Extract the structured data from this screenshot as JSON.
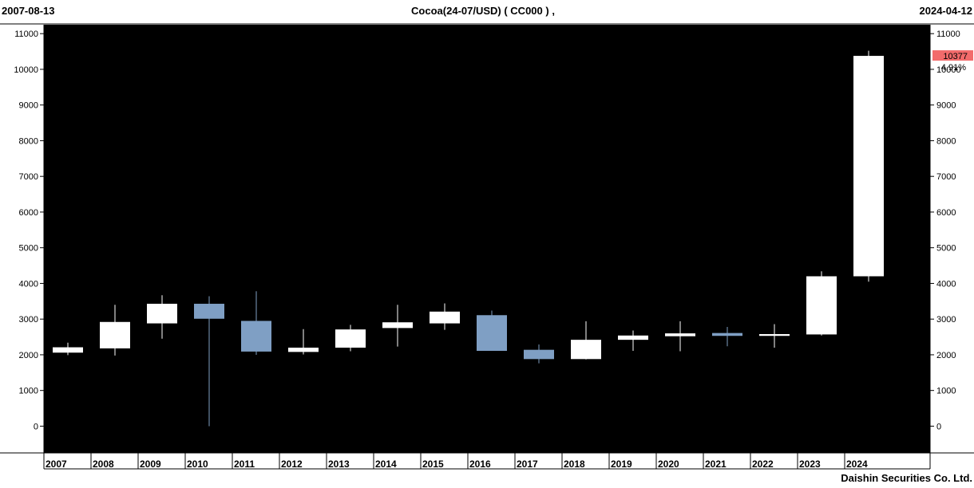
{
  "header": {
    "start_date": "2007-08-13",
    "title": "Cocoa(24-07/USD)  ( CC000 ) ,",
    "end_date": "2024-04-12"
  },
  "footer": {
    "company": "Daishin Securities Co. Ltd."
  },
  "last_price": {
    "value": "10377",
    "change": "4.91%"
  },
  "colors": {
    "background": "#000000",
    "up_candle": "#ffffff",
    "down_candle": "#7f9fc4",
    "price_badge": "#f26b6b",
    "change_text": "#e53030"
  },
  "chart_data": {
    "type": "candlestick",
    "title": "Cocoa(24-07/USD)  ( CC000 ) ,",
    "xlabel": "",
    "ylabel": "",
    "ylim": [
      -750,
      11250
    ],
    "y_ticks": [
      0,
      1000,
      2000,
      3000,
      4000,
      5000,
      6000,
      7000,
      8000,
      9000,
      10000,
      11000
    ],
    "grid": false,
    "categories": [
      "2007",
      "2008",
      "2009",
      "2010",
      "2011",
      "2012",
      "2013",
      "2014",
      "2015",
      "2016",
      "2017",
      "2018",
      "2019",
      "2020",
      "2021",
      "2022",
      "2023",
      "2024"
    ],
    "candles": [
      {
        "year": "2007",
        "open": 2060,
        "high": 2340,
        "low": 1990,
        "close": 2210
      },
      {
        "year": "2008",
        "open": 2180,
        "high": 3400,
        "low": 1980,
        "close": 2920
      },
      {
        "year": "2009",
        "open": 2880,
        "high": 3670,
        "low": 2450,
        "close": 3430
      },
      {
        "year": "2010",
        "open": 3430,
        "high": 3640,
        "low": 0,
        "close": 3010
      },
      {
        "year": "2011",
        "open": 2950,
        "high": 3780,
        "low": 2000,
        "close": 2090
      },
      {
        "year": "2012",
        "open": 2080,
        "high": 2720,
        "low": 2010,
        "close": 2200
      },
      {
        "year": "2013",
        "open": 2200,
        "high": 2840,
        "low": 2100,
        "close": 2710
      },
      {
        "year": "2014",
        "open": 2750,
        "high": 3400,
        "low": 2230,
        "close": 2910
      },
      {
        "year": "2015",
        "open": 2880,
        "high": 3440,
        "low": 2700,
        "close": 3210
      },
      {
        "year": "2016",
        "open": 3110,
        "high": 3240,
        "low": 2110,
        "close": 2110
      },
      {
        "year": "2017",
        "open": 2140,
        "high": 2290,
        "low": 1760,
        "close": 1880
      },
      {
        "year": "2018",
        "open": 1880,
        "high": 2940,
        "low": 1870,
        "close": 2420
      },
      {
        "year": "2019",
        "open": 2420,
        "high": 2680,
        "low": 2110,
        "close": 2540
      },
      {
        "year": "2020",
        "open": 2520,
        "high": 2940,
        "low": 2100,
        "close": 2600
      },
      {
        "year": "2021",
        "open": 2610,
        "high": 2780,
        "low": 2240,
        "close": 2530
      },
      {
        "year": "2022",
        "open": 2530,
        "high": 2860,
        "low": 2200,
        "close": 2580
      },
      {
        "year": "2023",
        "open": 2570,
        "high": 4340,
        "low": 2540,
        "close": 4200
      },
      {
        "year": "2024",
        "open": 4200,
        "high": 10520,
        "low": 4050,
        "close": 10377
      }
    ]
  }
}
